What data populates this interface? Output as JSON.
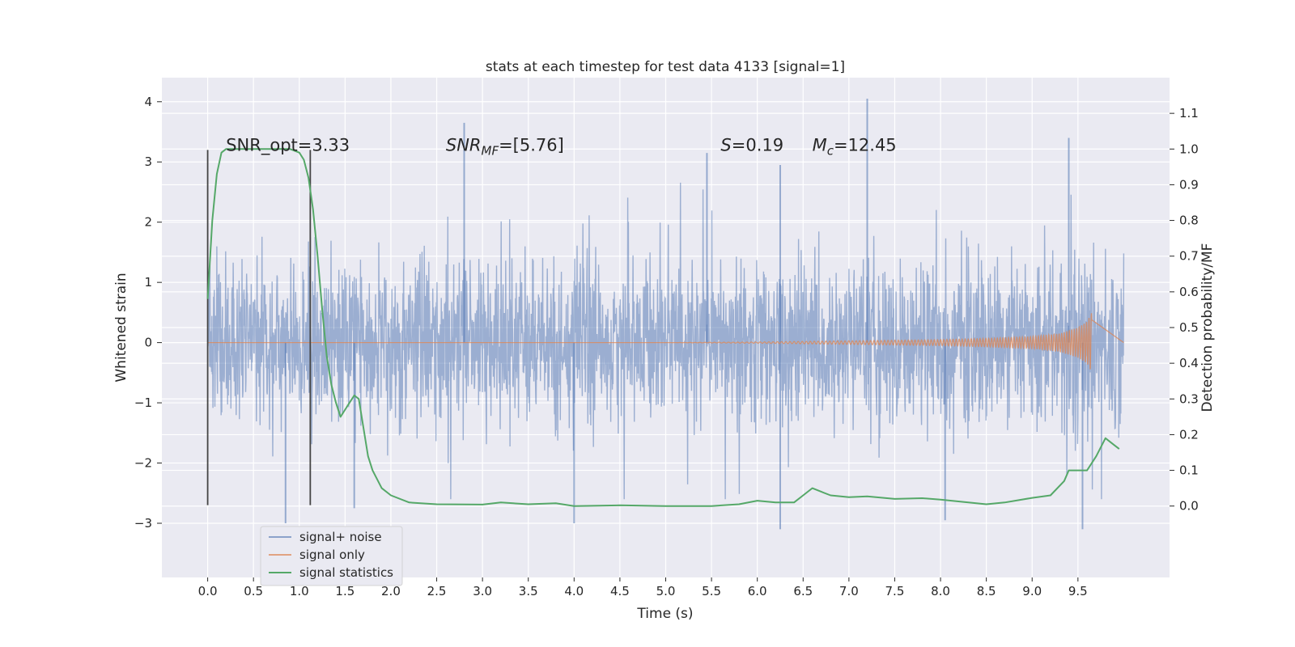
{
  "chart_data": {
    "type": "line",
    "title": "stats at each timestep for test data 4133 [signal=1]",
    "xlabel": "Time (s)",
    "ylabel": "Whitened strain",
    "y2label": "Detection probability/MF",
    "xlim": [
      -0.5,
      10.5
    ],
    "ylim": [
      -3.9,
      4.4
    ],
    "y2lim": [
      -0.2,
      1.2
    ],
    "x_ticks": [
      "0.0",
      "0.5",
      "1.0",
      "1.5",
      "2.0",
      "2.5",
      "3.0",
      "3.5",
      "4.0",
      "4.5",
      "5.0",
      "5.5",
      "6.0",
      "6.5",
      "7.0",
      "7.5",
      "8.0",
      "8.5",
      "9.0",
      "9.5"
    ],
    "y_ticks": [
      "4",
      "3",
      "2",
      "1",
      "0",
      "−1",
      "−2",
      "−3"
    ],
    "y2_ticks": [
      "1.1",
      "1.0",
      "0.9",
      "0.8",
      "0.7",
      "0.6",
      "0.5",
      "0.4",
      "0.3",
      "0.2",
      "0.1",
      "0.0"
    ],
    "grid": true,
    "legend_position": "lower-left",
    "colors": {
      "background": "#eaeaf2",
      "noise": "#4c72b0",
      "signal": "#dd8452",
      "statistics": "#55a868",
      "window": "#444444"
    },
    "annotations": [
      {
        "label": "SNR_opt=3.33",
        "x": 0.2,
        "y2": 1.0
      },
      {
        "label": "SNR",
        "sub": "MF",
        "suffix": "=[5.76]",
        "x": 2.6,
        "y2": 1.0
      },
      {
        "label": "S",
        "suffix": "=0.19",
        "x": 5.6,
        "y2": 1.0
      },
      {
        "label": "M",
        "sub": "c",
        "suffix": "=12.45",
        "x": 6.6,
        "y2": 1.0
      }
    ],
    "window_markers": [
      {
        "x": 0.0,
        "y": [
          -2.7,
          3.2
        ]
      },
      {
        "x": 1.12,
        "y": [
          -2.7,
          3.2
        ]
      }
    ],
    "series": [
      {
        "name": "signal+ noise",
        "x_range": [
          0.0,
          10.0
        ],
        "sampling": "dense noise, envelope approx ±1.4, peaks up to 4.0",
        "peaks": [
          {
            "x": 2.8,
            "y": 3.65
          },
          {
            "x": 5.45,
            "y": 3.15
          },
          {
            "x": 6.25,
            "y": 2.95
          },
          {
            "x": 7.2,
            "y": 4.05
          },
          {
            "x": 9.4,
            "y": 3.4
          },
          {
            "x": 4.0,
            "y": -3.0
          },
          {
            "x": 6.25,
            "y": -3.1
          },
          {
            "x": 9.55,
            "y": -3.1
          },
          {
            "x": 0.85,
            "y": -3.0
          },
          {
            "x": 1.6,
            "y": -2.75
          },
          {
            "x": 8.05,
            "y": -2.95
          }
        ]
      },
      {
        "name": "signal only",
        "x": [
          0.0,
          5.0,
          6.0,
          7.0,
          8.0,
          8.5,
          9.0,
          9.3,
          9.5,
          9.6,
          9.65
        ],
        "amplitude": [
          0.0,
          0.0,
          0.01,
          0.03,
          0.05,
          0.07,
          0.1,
          0.15,
          0.25,
          0.35,
          0.5
        ]
      },
      {
        "name": "signal statistics",
        "x": [
          0.0,
          0.05,
          0.1,
          0.15,
          0.2,
          0.3,
          0.5,
          0.7,
          0.9,
          1.0,
          1.05,
          1.1,
          1.15,
          1.2,
          1.25,
          1.3,
          1.35,
          1.4,
          1.45,
          1.5,
          1.55,
          1.6,
          1.65,
          1.7,
          1.75,
          1.8,
          1.9,
          2.0,
          2.2,
          2.5,
          3.0,
          3.2,
          3.5,
          3.8,
          4.0,
          4.5,
          5.0,
          5.5,
          5.8,
          6.0,
          6.2,
          6.4,
          6.5,
          6.6,
          6.7,
          6.8,
          7.0,
          7.2,
          7.5,
          7.8,
          8.0,
          8.5,
          8.7,
          9.0,
          9.2,
          9.35,
          9.4,
          9.5,
          9.6,
          9.7,
          9.8,
          9.9,
          9.95
        ],
        "y": [
          0.58,
          0.8,
          0.93,
          0.99,
          1.0,
          1.0,
          1.0,
          1.0,
          1.0,
          0.99,
          0.97,
          0.92,
          0.83,
          0.7,
          0.55,
          0.42,
          0.34,
          0.29,
          0.25,
          0.27,
          0.29,
          0.31,
          0.3,
          0.22,
          0.14,
          0.1,
          0.05,
          0.03,
          0.01,
          0.005,
          0.004,
          0.01,
          0.005,
          0.008,
          0.0,
          0.002,
          0.0,
          0.0,
          0.005,
          0.015,
          0.01,
          0.01,
          0.03,
          0.05,
          0.04,
          0.03,
          0.025,
          0.027,
          0.02,
          0.022,
          0.018,
          0.005,
          0.01,
          0.023,
          0.03,
          0.07,
          0.1,
          0.1,
          0.1,
          0.14,
          0.19,
          0.17,
          0.16
        ]
      }
    ]
  }
}
